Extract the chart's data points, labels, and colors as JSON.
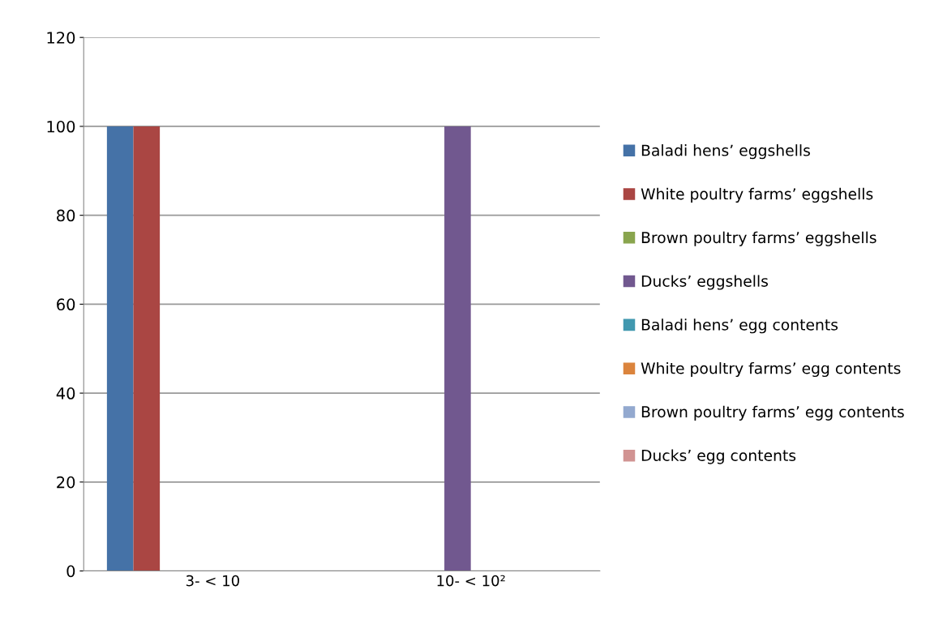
{
  "chart_data": {
    "type": "bar",
    "categories": [
      "3- < 10",
      "10- < 10²"
    ],
    "series": [
      {
        "name": "Baladi hens’ eggshells",
        "color": "#4572a7",
        "values": [
          100,
          0
        ]
      },
      {
        "name": "White poultry farms’ eggshells",
        "color": "#aa4643",
        "values": [
          100,
          0
        ]
      },
      {
        "name": "Brown poultry farms’ eggshells",
        "color": "#89a54e",
        "values": [
          0,
          0
        ]
      },
      {
        "name": "Ducks’ eggshells",
        "color": "#71588f",
        "values": [
          0,
          100
        ]
      },
      {
        "name": "Baladi hens’ egg contents",
        "color": "#4198af",
        "values": [
          0,
          0
        ]
      },
      {
        "name": "White poultry farms’ egg contents",
        "color": "#db843d",
        "values": [
          0,
          0
        ]
      },
      {
        "name": "Brown poultry farms’ egg contents",
        "color": "#93a9cf",
        "values": [
          0,
          0
        ]
      },
      {
        "name": "Ducks’ egg contents",
        "color": "#d19392",
        "values": [
          0,
          0
        ]
      }
    ],
    "ylim": [
      0,
      120
    ],
    "yticks": [
      0,
      20,
      40,
      60,
      80,
      100,
      120
    ],
    "grid": "y",
    "legend": "right"
  }
}
